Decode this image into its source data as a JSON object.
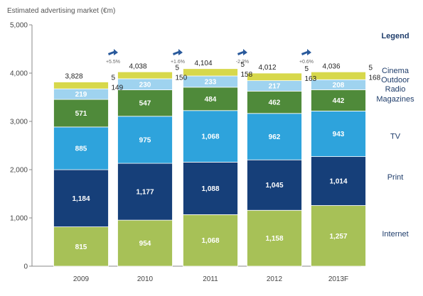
{
  "chart_data": {
    "type": "bar",
    "stacked": true,
    "ylabel": "Estimated advertising market (€m)",
    "categories": [
      "2009",
      "2010",
      "2011",
      "2012",
      "2013F"
    ],
    "ylim": [
      0,
      5000
    ],
    "yticks": [
      "0",
      "1,000",
      "2,000",
      "3,000",
      "4,000",
      "5,000"
    ],
    "grid": false,
    "series": [
      {
        "name": "Internet",
        "color": "#a7c157",
        "label_color": "#ffffff",
        "values": [
          815,
          954,
          1068,
          1158,
          1257
        ],
        "labels": [
          "815",
          "954",
          "1,068",
          "1,158",
          "1,257"
        ]
      },
      {
        "name": "Print",
        "color": "#163f79",
        "label_color": "#ffffff",
        "values": [
          1184,
          1177,
          1088,
          1045,
          1014
        ],
        "labels": [
          "1,184",
          "1,177",
          "1,088",
          "1,045",
          "1,014"
        ]
      },
      {
        "name": "TV",
        "color": "#2ea3dc",
        "label_color": "#ffffff",
        "values": [
          885,
          975,
          1068,
          962,
          943
        ],
        "labels": [
          "885",
          "975",
          "1,068",
          "962",
          "943"
        ]
      },
      {
        "name": "Magazines",
        "color": "#4f8a3a",
        "label_color": "#ffffff",
        "values": [
          571,
          547,
          484,
          462,
          442
        ],
        "labels": [
          "571",
          "547",
          "484",
          "462",
          "442"
        ]
      },
      {
        "name": "Radio",
        "color": "#9fd3ef",
        "label_color": "#ffffff",
        "values": [
          219,
          230,
          233,
          217,
          208
        ],
        "labels": [
          "219",
          "230",
          "233",
          "217",
          "208"
        ]
      },
      {
        "name": "Outdoor",
        "color": "#d7d84b",
        "values": [
          149,
          150,
          158,
          163,
          168
        ],
        "labels": [
          "149",
          "150",
          "158",
          "163",
          "168"
        ]
      },
      {
        "name": "Cinema",
        "color": "#d9e69e",
        "values": [
          5,
          5,
          5,
          5,
          5
        ],
        "labels": [
          "5",
          "5",
          "5",
          "5",
          "5"
        ]
      }
    ],
    "totals": [
      "3,828",
      "4,038",
      "4,104",
      "4,012",
      "4,036"
    ],
    "growth": [
      "+5.5%",
      "+1.6%",
      "-2.2%",
      "+0.6%"
    ],
    "legend": {
      "title": "Legend",
      "items": [
        {
          "label": "Cinema",
          "y": 4060
        },
        {
          "label": "Outdoor",
          "y": 3870
        },
        {
          "label": "Radio",
          "y": 3680
        },
        {
          "label": "Magazines",
          "y": 3470
        },
        {
          "label": "TV",
          "y": 2700
        },
        {
          "label": "Print",
          "y": 1850
        },
        {
          "label": "Internet",
          "y": 680
        }
      ]
    },
    "arrow_color": "#2a5a9c"
  }
}
